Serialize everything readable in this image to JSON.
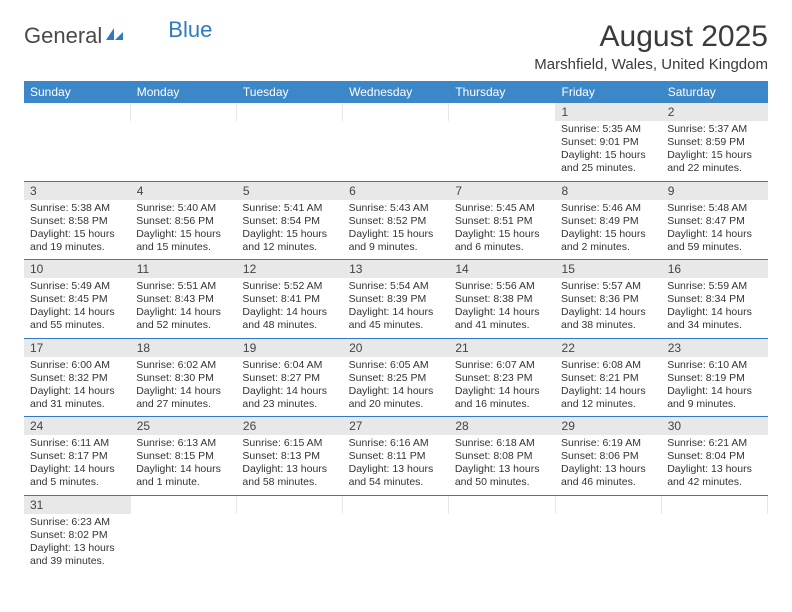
{
  "logo": {
    "part1": "General",
    "part2": "Blue"
  },
  "header": {
    "month_title": "August 2025",
    "location": "Marshfield, Wales, United Kingdom"
  },
  "weekdays": [
    "Sunday",
    "Monday",
    "Tuesday",
    "Wednesday",
    "Thursday",
    "Friday",
    "Saturday"
  ],
  "colors": {
    "header_bg": "#3b87c8",
    "header_text": "#ffffff",
    "daynum_bg": "#e8e8e8",
    "divider": "#2e7bbf",
    "text": "#333333",
    "logo_blue": "#2e7bbf"
  },
  "days": {
    "1": {
      "sunrise": "Sunrise: 5:35 AM",
      "sunset": "Sunset: 9:01 PM",
      "day1": "Daylight: 15 hours",
      "day2": "and 25 minutes."
    },
    "2": {
      "sunrise": "Sunrise: 5:37 AM",
      "sunset": "Sunset: 8:59 PM",
      "day1": "Daylight: 15 hours",
      "day2": "and 22 minutes."
    },
    "3": {
      "sunrise": "Sunrise: 5:38 AM",
      "sunset": "Sunset: 8:58 PM",
      "day1": "Daylight: 15 hours",
      "day2": "and 19 minutes."
    },
    "4": {
      "sunrise": "Sunrise: 5:40 AM",
      "sunset": "Sunset: 8:56 PM",
      "day1": "Daylight: 15 hours",
      "day2": "and 15 minutes."
    },
    "5": {
      "sunrise": "Sunrise: 5:41 AM",
      "sunset": "Sunset: 8:54 PM",
      "day1": "Daylight: 15 hours",
      "day2": "and 12 minutes."
    },
    "6": {
      "sunrise": "Sunrise: 5:43 AM",
      "sunset": "Sunset: 8:52 PM",
      "day1": "Daylight: 15 hours",
      "day2": "and 9 minutes."
    },
    "7": {
      "sunrise": "Sunrise: 5:45 AM",
      "sunset": "Sunset: 8:51 PM",
      "day1": "Daylight: 15 hours",
      "day2": "and 6 minutes."
    },
    "8": {
      "sunrise": "Sunrise: 5:46 AM",
      "sunset": "Sunset: 8:49 PM",
      "day1": "Daylight: 15 hours",
      "day2": "and 2 minutes."
    },
    "9": {
      "sunrise": "Sunrise: 5:48 AM",
      "sunset": "Sunset: 8:47 PM",
      "day1": "Daylight: 14 hours",
      "day2": "and 59 minutes."
    },
    "10": {
      "sunrise": "Sunrise: 5:49 AM",
      "sunset": "Sunset: 8:45 PM",
      "day1": "Daylight: 14 hours",
      "day2": "and 55 minutes."
    },
    "11": {
      "sunrise": "Sunrise: 5:51 AM",
      "sunset": "Sunset: 8:43 PM",
      "day1": "Daylight: 14 hours",
      "day2": "and 52 minutes."
    },
    "12": {
      "sunrise": "Sunrise: 5:52 AM",
      "sunset": "Sunset: 8:41 PM",
      "day1": "Daylight: 14 hours",
      "day2": "and 48 minutes."
    },
    "13": {
      "sunrise": "Sunrise: 5:54 AM",
      "sunset": "Sunset: 8:39 PM",
      "day1": "Daylight: 14 hours",
      "day2": "and 45 minutes."
    },
    "14": {
      "sunrise": "Sunrise: 5:56 AM",
      "sunset": "Sunset: 8:38 PM",
      "day1": "Daylight: 14 hours",
      "day2": "and 41 minutes."
    },
    "15": {
      "sunrise": "Sunrise: 5:57 AM",
      "sunset": "Sunset: 8:36 PM",
      "day1": "Daylight: 14 hours",
      "day2": "and 38 minutes."
    },
    "16": {
      "sunrise": "Sunrise: 5:59 AM",
      "sunset": "Sunset: 8:34 PM",
      "day1": "Daylight: 14 hours",
      "day2": "and 34 minutes."
    },
    "17": {
      "sunrise": "Sunrise: 6:00 AM",
      "sunset": "Sunset: 8:32 PM",
      "day1": "Daylight: 14 hours",
      "day2": "and 31 minutes."
    },
    "18": {
      "sunrise": "Sunrise: 6:02 AM",
      "sunset": "Sunset: 8:30 PM",
      "day1": "Daylight: 14 hours",
      "day2": "and 27 minutes."
    },
    "19": {
      "sunrise": "Sunrise: 6:04 AM",
      "sunset": "Sunset: 8:27 PM",
      "day1": "Daylight: 14 hours",
      "day2": "and 23 minutes."
    },
    "20": {
      "sunrise": "Sunrise: 6:05 AM",
      "sunset": "Sunset: 8:25 PM",
      "day1": "Daylight: 14 hours",
      "day2": "and 20 minutes."
    },
    "21": {
      "sunrise": "Sunrise: 6:07 AM",
      "sunset": "Sunset: 8:23 PM",
      "day1": "Daylight: 14 hours",
      "day2": "and 16 minutes."
    },
    "22": {
      "sunrise": "Sunrise: 6:08 AM",
      "sunset": "Sunset: 8:21 PM",
      "day1": "Daylight: 14 hours",
      "day2": "and 12 minutes."
    },
    "23": {
      "sunrise": "Sunrise: 6:10 AM",
      "sunset": "Sunset: 8:19 PM",
      "day1": "Daylight: 14 hours",
      "day2": "and 9 minutes."
    },
    "24": {
      "sunrise": "Sunrise: 6:11 AM",
      "sunset": "Sunset: 8:17 PM",
      "day1": "Daylight: 14 hours",
      "day2": "and 5 minutes."
    },
    "25": {
      "sunrise": "Sunrise: 6:13 AM",
      "sunset": "Sunset: 8:15 PM",
      "day1": "Daylight: 14 hours",
      "day2": "and 1 minute."
    },
    "26": {
      "sunrise": "Sunrise: 6:15 AM",
      "sunset": "Sunset: 8:13 PM",
      "day1": "Daylight: 13 hours",
      "day2": "and 58 minutes."
    },
    "27": {
      "sunrise": "Sunrise: 6:16 AM",
      "sunset": "Sunset: 8:11 PM",
      "day1": "Daylight: 13 hours",
      "day2": "and 54 minutes."
    },
    "28": {
      "sunrise": "Sunrise: 6:18 AM",
      "sunset": "Sunset: 8:08 PM",
      "day1": "Daylight: 13 hours",
      "day2": "and 50 minutes."
    },
    "29": {
      "sunrise": "Sunrise: 6:19 AM",
      "sunset": "Sunset: 8:06 PM",
      "day1": "Daylight: 13 hours",
      "day2": "and 46 minutes."
    },
    "30": {
      "sunrise": "Sunrise: 6:21 AM",
      "sunset": "Sunset: 8:04 PM",
      "day1": "Daylight: 13 hours",
      "day2": "and 42 minutes."
    },
    "31": {
      "sunrise": "Sunrise: 6:23 AM",
      "sunset": "Sunset: 8:02 PM",
      "day1": "Daylight: 13 hours",
      "day2": "and 39 minutes."
    }
  },
  "grid": [
    [
      null,
      null,
      null,
      null,
      null,
      "1",
      "2"
    ],
    [
      "3",
      "4",
      "5",
      "6",
      "7",
      "8",
      "9"
    ],
    [
      "10",
      "11",
      "12",
      "13",
      "14",
      "15",
      "16"
    ],
    [
      "17",
      "18",
      "19",
      "20",
      "21",
      "22",
      "23"
    ],
    [
      "24",
      "25",
      "26",
      "27",
      "28",
      "29",
      "30"
    ],
    [
      "31",
      null,
      null,
      null,
      null,
      null,
      null
    ]
  ]
}
